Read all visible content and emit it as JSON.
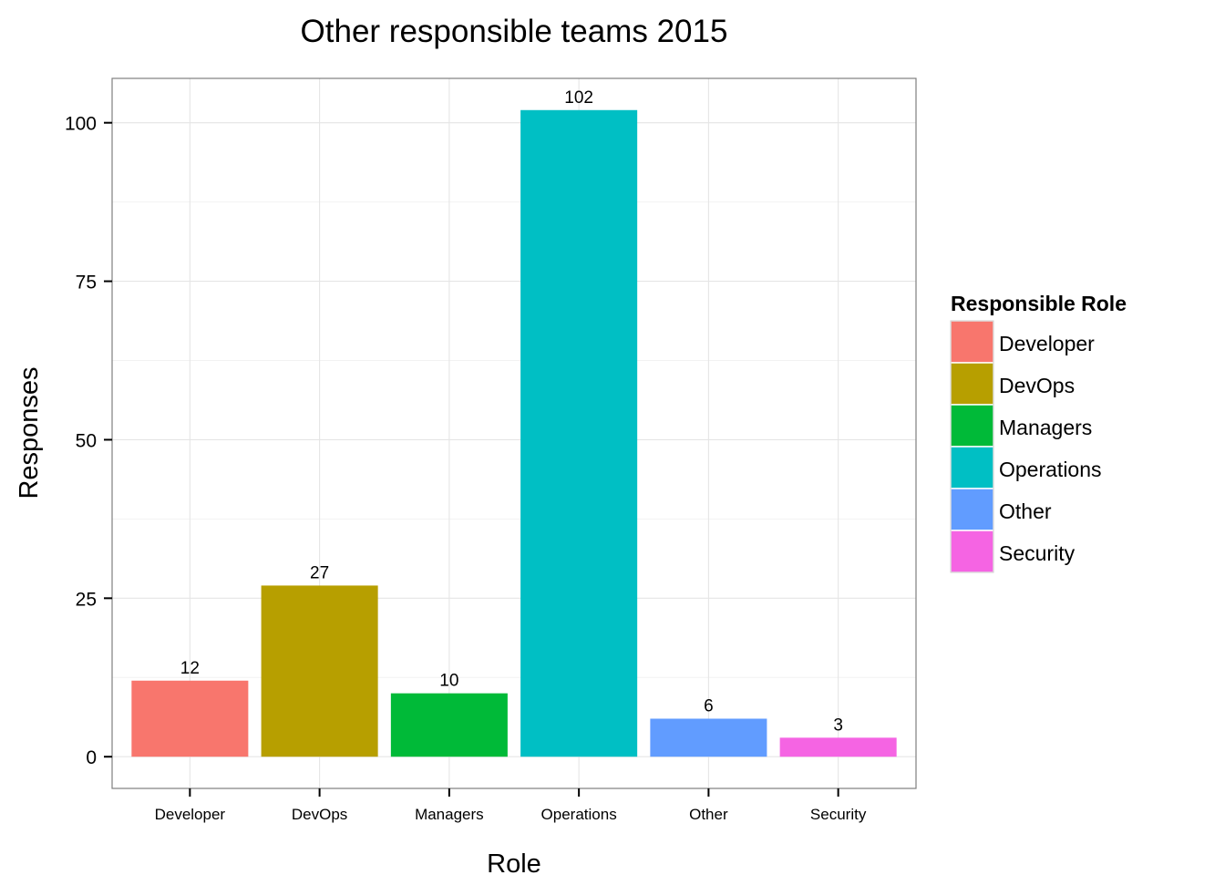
{
  "chart_data": {
    "type": "bar",
    "title": "Other responsible teams 2015",
    "xlabel": "Role",
    "ylabel": "Responses",
    "categories": [
      "Developer",
      "DevOps",
      "Managers",
      "Operations",
      "Other",
      "Security"
    ],
    "values": [
      12,
      27,
      10,
      102,
      6,
      3
    ],
    "data_labels": [
      "12",
      "27",
      "10",
      "102",
      "6",
      "3"
    ],
    "colors": [
      "#F8766D",
      "#B79F00",
      "#00BA38",
      "#00BFC4",
      "#619CFF",
      "#F564E3"
    ],
    "yticks": [
      0,
      25,
      50,
      75,
      100
    ],
    "ylim": [
      -5,
      107
    ],
    "grid": true,
    "legend": {
      "title": "Responsible Role",
      "position": "right",
      "entries": [
        "Developer",
        "DevOps",
        "Managers",
        "Operations",
        "Other",
        "Security"
      ]
    }
  }
}
